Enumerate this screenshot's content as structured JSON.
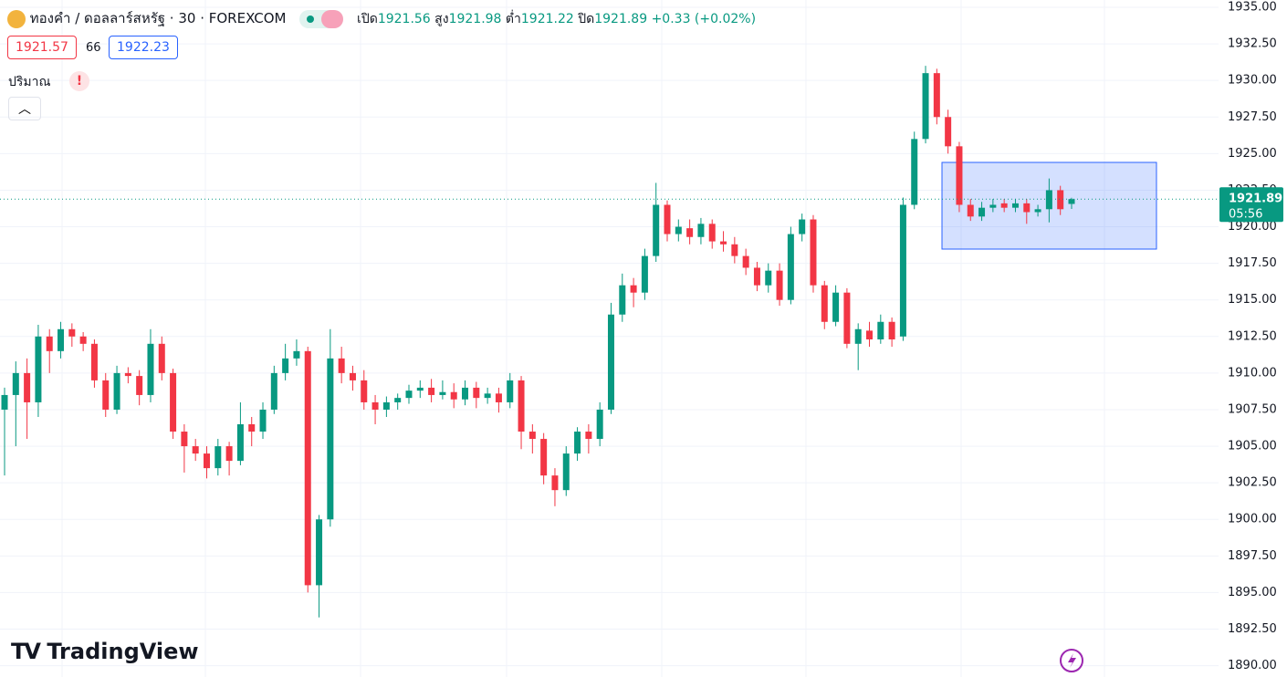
{
  "header": {
    "symbol": "ทองคำ / ดอลลาร์สหรัฐ · 30 · FOREXCOM",
    "open_label": "เปิด",
    "high_label": "สูง",
    "low_label": "ต่ำ",
    "close_label": "ปิด",
    "change": "+0.33 (+0.02%)",
    "bid": "1921.57",
    "spread": "66",
    "ask": "1922.23",
    "volume_label": "ปริมาณ",
    "countdown": "05:56",
    "logo": "TradingView"
  },
  "chart_data": {
    "type": "candlestick",
    "up_color": "#089981",
    "down_color": "#f23645",
    "grid": true,
    "ylim": [
      1889.9,
      1935.05
    ],
    "yticks": [
      {
        "value": 1890,
        "label": "1890.00"
      },
      {
        "value": 1892.5,
        "label": "1892.50"
      },
      {
        "value": 1895,
        "label": "1895.00"
      },
      {
        "value": 1897.5,
        "label": "1897.50"
      },
      {
        "value": 1900,
        "label": "1900.00"
      },
      {
        "value": 1902.5,
        "label": "1902.50"
      },
      {
        "value": 1905,
        "label": "1905.00"
      },
      {
        "value": 1907.5,
        "label": "1907.50"
      },
      {
        "value": 1910,
        "label": "1910.00"
      },
      {
        "value": 1912.5,
        "label": "1912.50"
      },
      {
        "value": 1915,
        "label": "1915.00"
      },
      {
        "value": 1917.5,
        "label": "1917.50"
      },
      {
        "value": 1920,
        "label": "1920.00"
      },
      {
        "value": 1922.5,
        "label": "1922.50"
      },
      {
        "value": 1925,
        "label": "1925.00"
      },
      {
        "value": 1927.5,
        "label": "1927.50"
      },
      {
        "value": 1930,
        "label": "1930.00"
      },
      {
        "value": 1932.5,
        "label": "1932.50"
      },
      {
        "value": 1935,
        "label": "1935.00"
      }
    ],
    "ohlc": [
      [
        1907.5,
        1909,
        1903,
        1908.5
      ],
      [
        1908.5,
        1910.8,
        1905,
        1910
      ],
      [
        1910,
        1911,
        1905.5,
        1908
      ],
      [
        1908,
        1913.3,
        1907,
        1912.5
      ],
      [
        1912.5,
        1913,
        1910,
        1911.5
      ],
      [
        1911.5,
        1913.5,
        1911,
        1913
      ],
      [
        1913,
        1913.4,
        1911.8,
        1912.5
      ],
      [
        1912.5,
        1912.8,
        1911.5,
        1912
      ],
      [
        1912,
        1912.3,
        1909,
        1909.5
      ],
      [
        1909.5,
        1910,
        1907,
        1907.5
      ],
      [
        1907.5,
        1910.5,
        1907.2,
        1910
      ],
      [
        1910,
        1910.4,
        1909.3,
        1909.8
      ],
      [
        1909.8,
        1910.2,
        1907.8,
        1908.5
      ],
      [
        1908.5,
        1913,
        1908,
        1912
      ],
      [
        1912,
        1912.5,
        1909.5,
        1910
      ],
      [
        1910,
        1910.3,
        1905.5,
        1906
      ],
      [
        1906,
        1906.5,
        1903.2,
        1905
      ],
      [
        1905,
        1905.5,
        1904,
        1904.5
      ],
      [
        1904.5,
        1905,
        1902.8,
        1903.5
      ],
      [
        1903.5,
        1905.5,
        1903,
        1905
      ],
      [
        1905,
        1905.3,
        1903,
        1904
      ],
      [
        1904,
        1908,
        1903.7,
        1906.5
      ],
      [
        1906.5,
        1907,
        1905,
        1906
      ],
      [
        1906,
        1908,
        1905.5,
        1907.5
      ],
      [
        1907.5,
        1910.5,
        1907.2,
        1910
      ],
      [
        1910,
        1912,
        1909.5,
        1911
      ],
      [
        1911,
        1912.3,
        1910.5,
        1911.5
      ],
      [
        1911.5,
        1911.8,
        1895,
        1895.5
      ],
      [
        1895.5,
        1900.3,
        1893.3,
        1900
      ],
      [
        1900,
        1913,
        1899.5,
        1911
      ],
      [
        1911,
        1911.8,
        1909.3,
        1910
      ],
      [
        1910,
        1910.5,
        1908.8,
        1909.5
      ],
      [
        1909.5,
        1910.2,
        1907.5,
        1908
      ],
      [
        1908,
        1908.5,
        1906.5,
        1907.5
      ],
      [
        1907.5,
        1908.4,
        1907,
        1908
      ],
      [
        1908,
        1908.6,
        1907.5,
        1908.3
      ],
      [
        1908.3,
        1909.2,
        1907.9,
        1908.8
      ],
      [
        1908.8,
        1909.5,
        1908.3,
        1909
      ],
      [
        1909,
        1909.6,
        1908,
        1908.5
      ],
      [
        1908.5,
        1909.5,
        1908.2,
        1908.7
      ],
      [
        1908.7,
        1909.3,
        1907.6,
        1908.2
      ],
      [
        1908.2,
        1909.5,
        1907.8,
        1909
      ],
      [
        1909,
        1909.4,
        1907.6,
        1908.3
      ],
      [
        1908.3,
        1909,
        1907.9,
        1908.6
      ],
      [
        1908.6,
        1909,
        1907.3,
        1908
      ],
      [
        1908,
        1910,
        1907.6,
        1909.5
      ],
      [
        1909.5,
        1909.8,
        1904.8,
        1906
      ],
      [
        1906,
        1906.5,
        1904.5,
        1905.5
      ],
      [
        1905.5,
        1905.9,
        1902.4,
        1903
      ],
      [
        1903,
        1903.5,
        1900.9,
        1902
      ],
      [
        1902,
        1905,
        1901.6,
        1904.5
      ],
      [
        1904.5,
        1906.3,
        1904,
        1906
      ],
      [
        1906,
        1906.5,
        1904.5,
        1905.5
      ],
      [
        1905.5,
        1908,
        1905,
        1907.5
      ],
      [
        1907.5,
        1914.8,
        1907.2,
        1914
      ],
      [
        1914,
        1916.8,
        1913.5,
        1916
      ],
      [
        1916,
        1916.5,
        1914.5,
        1915.5
      ],
      [
        1915.5,
        1918.5,
        1915,
        1918
      ],
      [
        1918,
        1923,
        1917.6,
        1921.5
      ],
      [
        1921.5,
        1921.8,
        1919,
        1919.5
      ],
      [
        1919.5,
        1920.5,
        1919,
        1920
      ],
      [
        1919.9,
        1920.5,
        1918.8,
        1919.3
      ],
      [
        1919.3,
        1920.6,
        1918.8,
        1920.2
      ],
      [
        1920.2,
        1920.5,
        1918.5,
        1919
      ],
      [
        1919,
        1919.7,
        1918.3,
        1918.8
      ],
      [
        1918.8,
        1919.3,
        1917.5,
        1918
      ],
      [
        1918,
        1918.5,
        1916.7,
        1917.2
      ],
      [
        1917.2,
        1917.6,
        1915.6,
        1916
      ],
      [
        1916,
        1917.5,
        1915.5,
        1917
      ],
      [
        1917,
        1917.5,
        1914.6,
        1915
      ],
      [
        1915,
        1920,
        1914.7,
        1919.5
      ],
      [
        1919.5,
        1920.9,
        1919,
        1920.5
      ],
      [
        1920.5,
        1920.8,
        1915.5,
        1916
      ],
      [
        1916,
        1916.3,
        1913,
        1913.5
      ],
      [
        1913.5,
        1916,
        1913.2,
        1915.5
      ],
      [
        1915.5,
        1915.8,
        1911.7,
        1912
      ],
      [
        1912,
        1913.4,
        1910.2,
        1913
      ],
      [
        1912.9,
        1913.5,
        1911.8,
        1912.3
      ],
      [
        1912.3,
        1914,
        1912,
        1913.5
      ],
      [
        1913.5,
        1913.8,
        1911.8,
        1912.3
      ],
      [
        1912.5,
        1922,
        1912.2,
        1921.5
      ],
      [
        1921.5,
        1926.5,
        1921.2,
        1926
      ],
      [
        1926,
        1931,
        1925.7,
        1930.5
      ],
      [
        1930.5,
        1930.8,
        1927,
        1927.5
      ],
      [
        1927.5,
        1928,
        1925,
        1925.5
      ],
      [
        1925.5,
        1925.8,
        1921,
        1921.5
      ],
      [
        1921.5,
        1921.9,
        1920.4,
        1920.7
      ],
      [
        1920.7,
        1921.7,
        1920.4,
        1921.3
      ],
      [
        1921.3,
        1921.9,
        1921,
        1921.5
      ],
      [
        1921.6,
        1921.9,
        1921,
        1921.3
      ],
      [
        1921.3,
        1921.9,
        1921,
        1921.6
      ],
      [
        1921.6,
        1921.9,
        1920.2,
        1921
      ],
      [
        1921,
        1921.5,
        1920.7,
        1921.2
      ],
      [
        1921.2,
        1923.3,
        1920.3,
        1922.5
      ],
      [
        1922.5,
        1922.8,
        1920.8,
        1921.2
      ],
      [
        1921.56,
        1921.98,
        1921.22,
        1921.89
      ]
    ]
  }
}
